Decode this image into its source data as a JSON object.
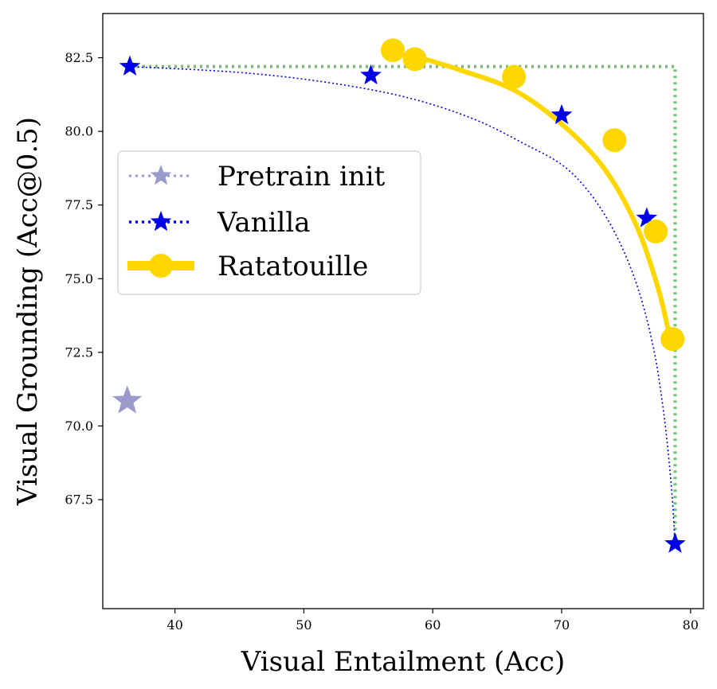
{
  "chart_data": {
    "type": "scatter",
    "title": "",
    "xlabel": "Visual Entailment (Acc)",
    "ylabel": "Visual Grounding (Acc@0.5)",
    "xlim": [
      34.4,
      81
    ],
    "ylim": [
      63.8,
      84.0
    ],
    "xticks": [
      40,
      50,
      60,
      70,
      80
    ],
    "yticks": [
      67.5,
      70.0,
      72.5,
      75.0,
      77.5,
      80.0,
      82.5
    ],
    "legend_position": "center-left",
    "series": [
      {
        "name": "Pretrain init",
        "marker": "star",
        "line_style": "none",
        "color": "#9b9bcb",
        "points": [
          [
            36.3,
            70.85
          ]
        ]
      },
      {
        "name": "Vanilla",
        "marker": "star-outline",
        "line_style": "dotted",
        "color": "#0000e6",
        "points": [
          [
            36.5,
            82.2
          ],
          [
            55.2,
            81.9
          ],
          [
            70.0,
            80.55
          ],
          [
            76.6,
            77.05
          ],
          [
            78.8,
            66.0
          ]
        ],
        "curve": [
          [
            36.5,
            82.2
          ],
          [
            45,
            82.0
          ],
          [
            52,
            81.65
          ],
          [
            58,
            81.15
          ],
          [
            63,
            80.45
          ],
          [
            67,
            79.6
          ],
          [
            70.5,
            78.7
          ],
          [
            73.3,
            77.2
          ],
          [
            75.5,
            75.2
          ],
          [
            77.0,
            72.9
          ],
          [
            77.9,
            70.5
          ],
          [
            78.5,
            68.0
          ],
          [
            78.8,
            66.0
          ]
        ]
      },
      {
        "name": "Ratatouille",
        "marker": "circle",
        "line_style": "solid",
        "color": "#ffd700",
        "points": [
          [
            56.9,
            82.75
          ],
          [
            58.6,
            82.45
          ],
          [
            66.3,
            81.85
          ],
          [
            74.1,
            79.7
          ],
          [
            77.3,
            76.6
          ],
          [
            78.6,
            72.95
          ]
        ],
        "curve": [
          [
            58.6,
            82.55
          ],
          [
            62.0,
            82.1
          ],
          [
            66.3,
            81.4
          ],
          [
            70.0,
            80.25
          ],
          [
            73.2,
            78.8
          ],
          [
            75.7,
            76.9
          ],
          [
            77.4,
            74.8
          ],
          [
            78.3,
            73.2
          ]
        ]
      }
    ],
    "pareto_frontier": {
      "color": "#6cc46c",
      "line_style": "dotted",
      "points": [
        [
          36.5,
          82.2
        ],
        [
          78.8,
          82.2
        ],
        [
          78.8,
          66.0
        ]
      ]
    }
  }
}
